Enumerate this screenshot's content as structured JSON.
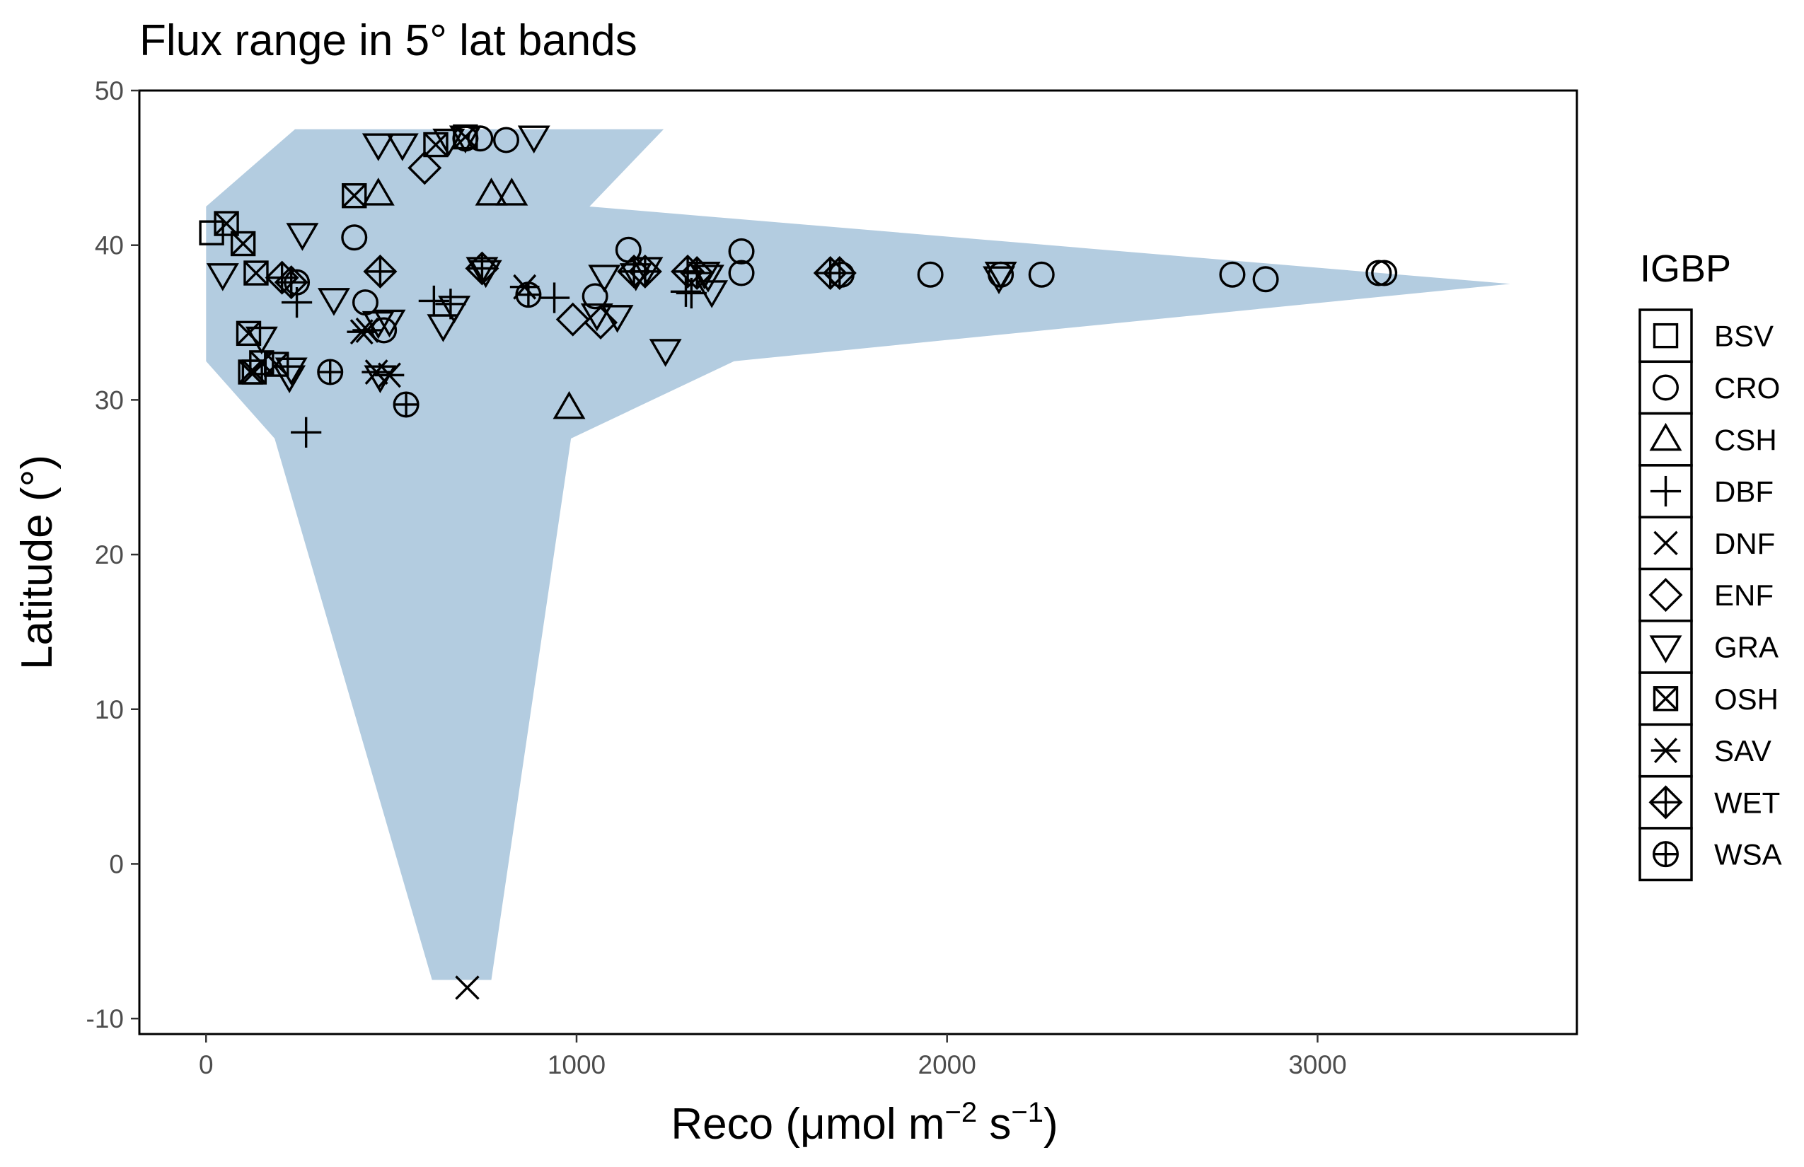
{
  "chart_data": {
    "type": "scatter",
    "title": "Flux range in 5° lat bands",
    "xlabel": {
      "base": "Reco (μmol m",
      "exp1": "−2",
      "mid": " s",
      "exp2": "−1",
      "close": ")"
    },
    "ylabel": "Latitude (°)",
    "xlim": [
      -180,
      3700
    ],
    "ylim": [
      -11,
      50
    ],
    "xticks": [
      0,
      1000,
      2000,
      3000
    ],
    "xtick_labels": [
      "0",
      "1000",
      "2000",
      "3000"
    ],
    "yticks": [
      -10,
      0,
      10,
      20,
      30,
      40,
      50
    ],
    "ytick_labels": [
      "-10",
      "0",
      "10",
      "20",
      "30",
      "40",
      "50"
    ],
    "grid": false,
    "legend": {
      "title": "IGBP",
      "placement": "right"
    },
    "band_color": "#b3cce0",
    "band": {
      "description": "range of Reco across sites within each 5° latitude band",
      "lower_edge": [
        [
          0,
          42.5
        ],
        [
          0,
          32.5
        ],
        [
          185,
          27.5
        ],
        [
          610,
          -7.5
        ]
      ],
      "upper_edge": [
        [
          770,
          -7.5
        ],
        [
          985,
          27.5
        ],
        [
          1425,
          32.5
        ],
        [
          3520,
          37.5
        ],
        [
          1035,
          42.5
        ],
        [
          1235,
          47.5
        ],
        [
          240,
          47.5
        ]
      ]
    },
    "series": [
      {
        "name": "BSV",
        "shape": "square",
        "points": [
          [
            15,
            40.8
          ]
        ]
      },
      {
        "name": "CRO",
        "shape": "circle",
        "points": [
          [
            245,
            37.6
          ],
          [
            430,
            36.3
          ],
          [
            400,
            40.5
          ],
          [
            480,
            34.5
          ],
          [
            700,
            46.9
          ],
          [
            740,
            46.9
          ],
          [
            810,
            46.8
          ],
          [
            1050,
            36.7
          ],
          [
            1140,
            39.7
          ],
          [
            1445,
            39.6
          ],
          [
            1445,
            38.2
          ],
          [
            1715,
            38.1
          ],
          [
            1955,
            38.1
          ],
          [
            2145,
            38.1
          ],
          [
            2255,
            38.1
          ],
          [
            2770,
            38.1
          ],
          [
            2860,
            37.8
          ],
          [
            3165,
            38.2
          ],
          [
            3180,
            38.2
          ]
        ]
      },
      {
        "name": "CSH",
        "shape": "triangle",
        "points": [
          [
            465,
            43.3
          ],
          [
            770,
            43.3
          ],
          [
            825,
            43.3
          ],
          [
            980,
            29.5
          ]
        ]
      },
      {
        "name": "DBF",
        "shape": "plus",
        "points": [
          [
            245,
            36.3
          ],
          [
            270,
            27.9
          ],
          [
            615,
            36.4
          ],
          [
            660,
            36.2
          ],
          [
            940,
            36.6
          ],
          [
            1295,
            37.0
          ],
          [
            1310,
            36.9
          ]
        ]
      },
      {
        "name": "DNF",
        "shape": "cross",
        "points": [
          [
            705,
            -8.0
          ]
        ]
      },
      {
        "name": "ENF",
        "shape": "diamond",
        "points": [
          [
            590,
            45.0
          ],
          [
            990,
            35.2
          ],
          [
            1065,
            35.0
          ]
        ]
      },
      {
        "name": "GRA",
        "shape": "triangle-down",
        "points": [
          [
            45,
            38.1
          ],
          [
            260,
            40.7
          ],
          [
            345,
            36.5
          ],
          [
            465,
            46.5
          ],
          [
            530,
            46.5
          ],
          [
            465,
            35.0
          ],
          [
            470,
            31.5
          ],
          [
            495,
            35.1
          ],
          [
            640,
            34.8
          ],
          [
            670,
            36.0
          ],
          [
            655,
            46.8
          ],
          [
            700,
            47.0
          ],
          [
            885,
            47.0
          ],
          [
            225,
            31.5
          ],
          [
            230,
            32.0
          ],
          [
            150,
            34.0
          ],
          [
            1055,
            35.5
          ],
          [
            1110,
            35.4
          ],
          [
            1075,
            38.0
          ],
          [
            1160,
            38.1
          ],
          [
            1190,
            38.5
          ],
          [
            1240,
            33.2
          ],
          [
            1345,
            38.2
          ],
          [
            1355,
            38.0
          ],
          [
            1365,
            37.0
          ],
          [
            2140,
            37.9
          ],
          [
            2145,
            38.2
          ],
          [
            745,
            38.5
          ],
          [
            755,
            38.3
          ]
        ]
      },
      {
        "name": "OSH",
        "shape": "square-x",
        "points": [
          [
            55,
            41.4
          ],
          [
            100,
            40.1
          ],
          [
            135,
            38.2
          ],
          [
            400,
            43.2
          ],
          [
            620,
            46.5
          ],
          [
            700,
            47.0
          ],
          [
            115,
            34.3
          ],
          [
            120,
            31.8
          ],
          [
            130,
            31.8
          ],
          [
            150,
            32.4
          ],
          [
            190,
            32.3
          ]
        ]
      },
      {
        "name": "SAV",
        "shape": "asterisk",
        "points": [
          [
            420,
            34.4
          ],
          [
            435,
            34.5
          ],
          [
            460,
            31.8
          ],
          [
            495,
            31.6
          ],
          [
            860,
            37.3
          ]
        ]
      },
      {
        "name": "WET",
        "shape": "diamond-plus",
        "points": [
          [
            470,
            38.3
          ],
          [
            745,
            38.5
          ],
          [
            1155,
            38.3
          ],
          [
            1185,
            38.3
          ],
          [
            1300,
            38.3
          ],
          [
            1325,
            38.2
          ],
          [
            1685,
            38.2
          ],
          [
            1710,
            38.2
          ],
          [
            205,
            37.9
          ],
          [
            230,
            37.6
          ]
        ]
      },
      {
        "name": "WSA",
        "shape": "circle-plus",
        "points": [
          [
            335,
            31.8
          ],
          [
            540,
            29.7
          ],
          [
            870,
            36.8
          ]
        ]
      }
    ]
  }
}
